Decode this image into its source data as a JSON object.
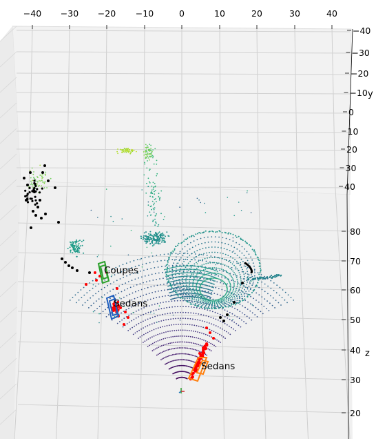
{
  "chart_data": {
    "type": "scatter",
    "projection": "3d",
    "title": "",
    "xlabel": "",
    "ylabel": "y",
    "zlabel": "z",
    "x_ticks": [
      -40,
      -30,
      -20,
      -10,
      0,
      10,
      20,
      30,
      40
    ],
    "y_ticks": [
      -40,
      -30,
      -20,
      -10,
      0,
      10,
      20,
      30,
      40
    ],
    "z_ticks": [
      80,
      70,
      60,
      50,
      40,
      30,
      20
    ],
    "grid": true,
    "colormap": "viridis",
    "annotations": [
      {
        "label": "Coupes",
        "x": -21,
        "z": 66
      },
      {
        "label": "Sedans",
        "x": -19,
        "z": 58
      },
      {
        "label": "Sedans",
        "x": 5,
        "z": 37
      }
    ],
    "object_point_colors": {
      "dark": "#000000",
      "highlight": "#ff0000"
    },
    "box_colors": {
      "coupe": "#2ca02c",
      "sedan": "#1f5fbf",
      "sedan_near": "#ff7f0e"
    }
  }
}
